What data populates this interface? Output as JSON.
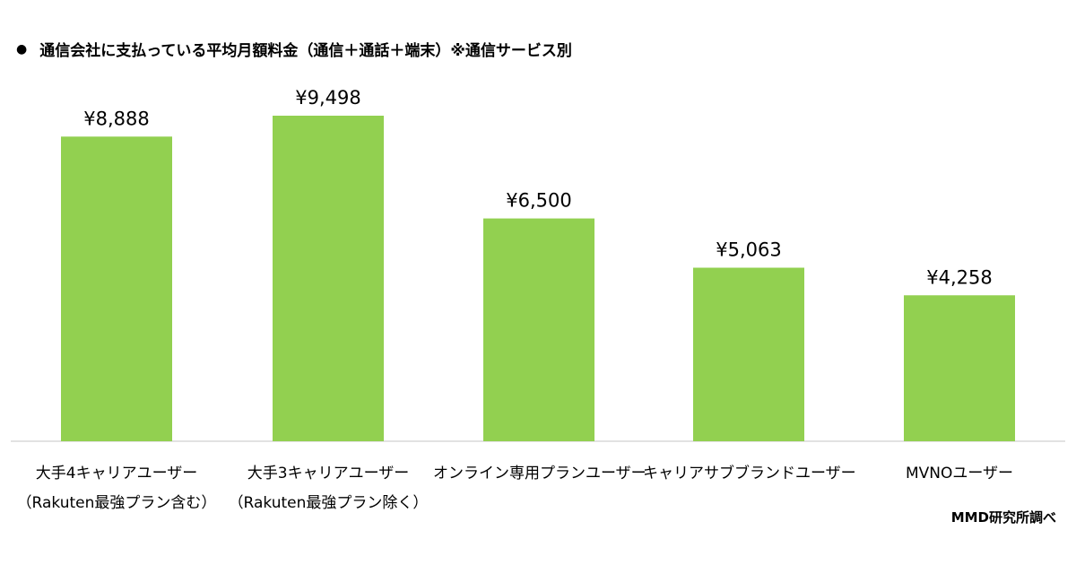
{
  "title": "通信会社に支払っている平均月額料金（通信＋通話＋端末）※通信サービス別",
  "title_bullet": "●",
  "source": "MMD研究所調べ",
  "colors": {
    "bar": "#92d050",
    "axis": "#d9d9d9",
    "text": "#000000"
  },
  "chart_data": {
    "type": "bar",
    "title": "通信会社に支払っている平均月額料金（通信＋通話＋端末）※通信サービス別",
    "categories": [
      [
        "大手4キャリアユーザー",
        "（Rakuten最強プラン含む）"
      ],
      [
        "大手3キャリアユーザー",
        "（Rakuten最強プラン除く）"
      ],
      [
        "オンライン専用プランユーザー"
      ],
      [
        "キャリアサブブランドユーザー"
      ],
      [
        "MVNOユーザー"
      ]
    ],
    "values": [
      8888,
      9498,
      6500,
      5063,
      4258
    ],
    "value_labels": [
      "¥8,888",
      "¥9,498",
      "¥6,500",
      "¥5,063",
      "¥4,258"
    ],
    "ylim": [
      0,
      10000
    ],
    "grid": false,
    "legend": "none"
  }
}
